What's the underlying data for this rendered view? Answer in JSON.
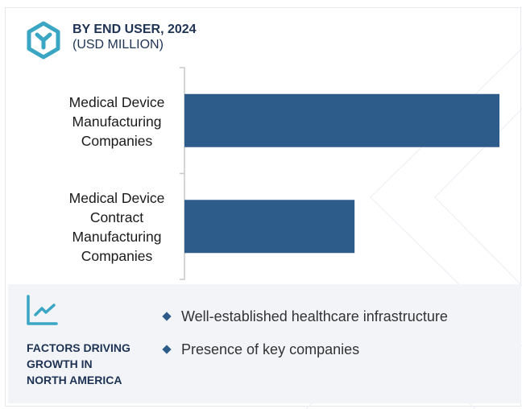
{
  "header": {
    "title": "BY END USER, 2024",
    "subtitle": "(USD MILLION)",
    "logo_icon": "hexagon-y-logo-icon"
  },
  "chart_data": {
    "type": "bar",
    "orientation": "horizontal",
    "title": "BY END USER, 2024",
    "subtitle": "(USD MILLION)",
    "categories": [
      [
        "Medical Device",
        "Manufacturing",
        "Companies"
      ],
      [
        "Medical Device",
        "Contract",
        "Manufacturing",
        "Companies"
      ]
    ],
    "category_names": [
      "Medical Device Manufacturing Companies",
      "Medical Device Contract Manufacturing Companies"
    ],
    "values": [
      100,
      54
    ],
    "value_note": "relative estimates from bar length; no axis values shown",
    "xlim": [
      0,
      100
    ],
    "xlabel": "",
    "ylabel": "",
    "grid": false,
    "legend": "none",
    "bar_color": "#2d5c8a"
  },
  "factors": {
    "icon": "line-chart-growth-icon",
    "title_lines": [
      "FACTORS DRIVING",
      "GROWTH IN",
      "NORTH AMERICA"
    ],
    "bullets": [
      "Well-established healthcare infrastructure",
      "Presence of key companies"
    ]
  },
  "colors": {
    "accent": "#3aa6c4",
    "bar": "#2d5c8a",
    "title": "#1e3354",
    "panel_bg": "#f3f4f8"
  }
}
